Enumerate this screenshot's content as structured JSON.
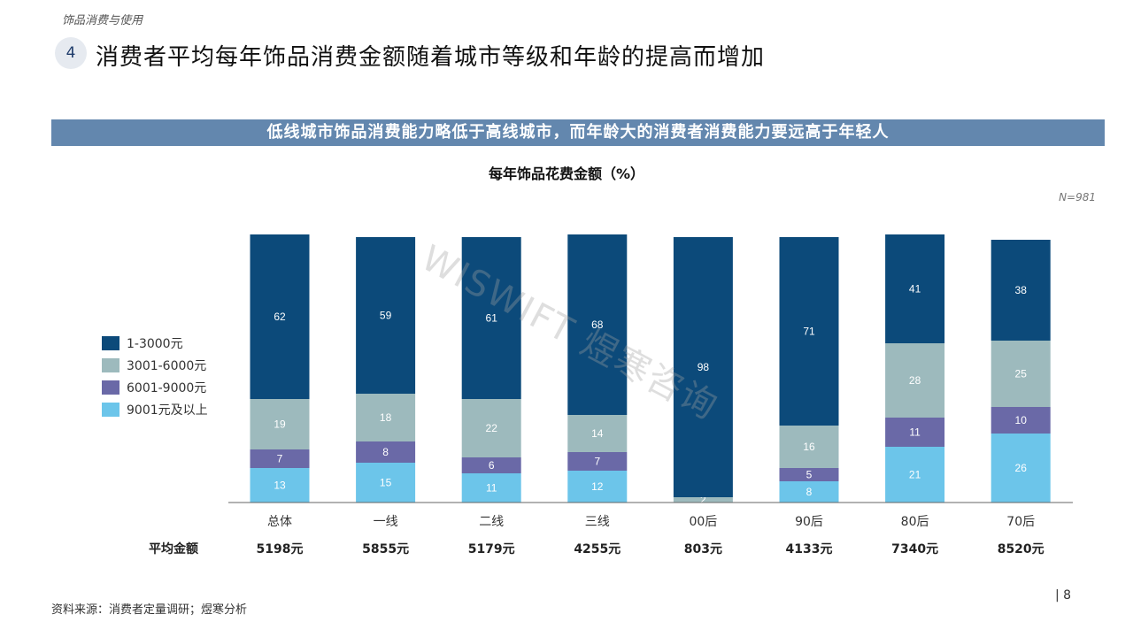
{
  "header": {
    "section_label": "饰品消费与使用",
    "number": "4",
    "title": "消费者平均每年饰品消费金额随着城市等级和年龄的提高而增加"
  },
  "banner": "低线城市饰品消费能力略低于高线城市，而年龄大的消费者消费能力要远高于年轻人",
  "n_label": "N=981",
  "avg_label": "平均金额",
  "watermark": "WISWIFT 煜寒咨询",
  "footer": {
    "source": "资料来源：消费者定量调研；煜寒分析",
    "page": "| 8"
  },
  "colors": {
    "tier1": "#0c4a7a",
    "tier2": "#9dbabd",
    "tier3": "#6a69a7",
    "tier4": "#6cc5ea",
    "banner": "#6387ae"
  },
  "chart_data": {
    "type": "bar",
    "stacked": true,
    "title": "每年饰品花费金额（%）",
    "categories": [
      "总体",
      "一线",
      "二线",
      "三线",
      "00后",
      "90后",
      "80后",
      "70后"
    ],
    "series": [
      {
        "name": "9001元及以上",
        "values": [
          13,
          15,
          11,
          12,
          0,
          8,
          21,
          26
        ]
      },
      {
        "name": "6001-9000元",
        "values": [
          7,
          8,
          6,
          7,
          0,
          5,
          11,
          10
        ]
      },
      {
        "name": "3001-6000元",
        "values": [
          19,
          18,
          22,
          14,
          2,
          16,
          28,
          25
        ]
      },
      {
        "name": "1-3000元",
        "values": [
          62,
          59,
          61,
          68,
          98,
          71,
          41,
          38
        ]
      }
    ],
    "legend_order": [
      "1-3000元",
      "3001-6000元",
      "6001-9000元",
      "9001元及以上"
    ],
    "averages": [
      "5198元",
      "5855元",
      "5179元",
      "4255元",
      "803元",
      "4133元",
      "7340元",
      "8520元"
    ],
    "ylim": [
      0,
      100
    ]
  }
}
